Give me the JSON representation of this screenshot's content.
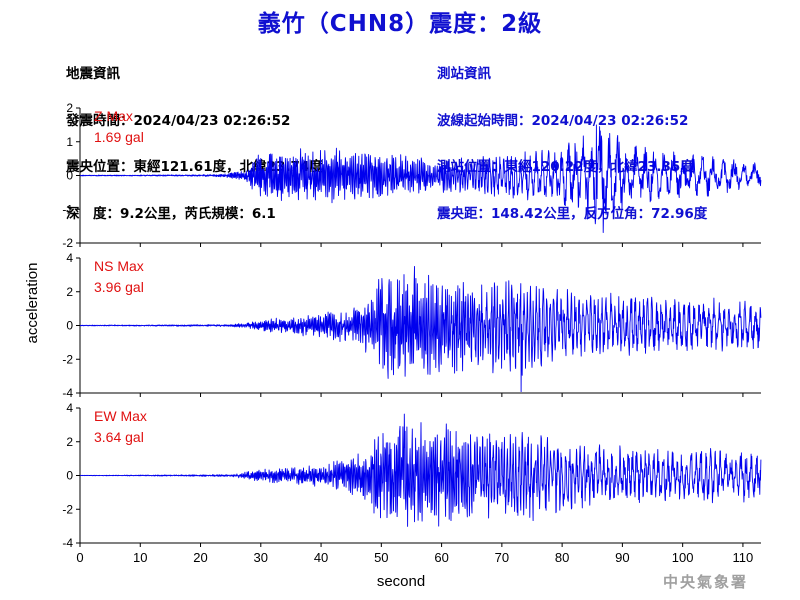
{
  "title": "義竹（CHN8）震度：2級",
  "earthquake_info": {
    "heading": "地震資訊",
    "time": "發震時間：2024/04/23 02:26:52",
    "location": "震央位置：東經121.61度，北緯23.74度",
    "depth_magnitude": "深　度：9.2公里，芮氏規模：6.1"
  },
  "station_info": {
    "heading": "測站資訊",
    "wave_start": "波線起始時間：2024/04/23 02:26:52",
    "location": "測站位置：東經120.22度，北緯23.35度",
    "distance": "震央距：148.42公里，反方位角：72.96度"
  },
  "footer": "中央氣象署",
  "colors": {
    "title": "#1010d0",
    "trace": "#0000ee",
    "max_label": "#e01010",
    "station": "#1010d0"
  },
  "chart_data": {
    "type": "line",
    "xlabel": "second",
    "ylabel": "acceleration",
    "xlim": [
      0,
      113
    ],
    "xticks": [
      0,
      10,
      20,
      30,
      40,
      50,
      60,
      70,
      80,
      90,
      100,
      110
    ],
    "panels": [
      {
        "name": "Z",
        "max_label": "Z Max",
        "max_value": "1.69 gal",
        "ylim": [
          -2,
          2
        ],
        "yticks": [
          -2,
          -1,
          0,
          1,
          2
        ],
        "envelope": [
          [
            0,
            0.01
          ],
          [
            20,
            0.02
          ],
          [
            24,
            0.04
          ],
          [
            27,
            0.12
          ],
          [
            30,
            0.55
          ],
          [
            35,
            0.7
          ],
          [
            40,
            0.7
          ],
          [
            45,
            0.6
          ],
          [
            50,
            0.55
          ],
          [
            55,
            0.5
          ],
          [
            60,
            0.45
          ],
          [
            65,
            0.45
          ],
          [
            70,
            0.55
          ],
          [
            75,
            0.6
          ],
          [
            80,
            0.75
          ],
          [
            84,
            1.0
          ],
          [
            86,
            1.3
          ],
          [
            88,
            1.2
          ],
          [
            90,
            0.9
          ],
          [
            95,
            0.65
          ],
          [
            100,
            0.55
          ],
          [
            105,
            0.5
          ],
          [
            110,
            0.4
          ],
          [
            113,
            0.3
          ]
        ],
        "period": [
          [
            0,
            0.15
          ],
          [
            60,
            0.3
          ],
          [
            70,
            0.6
          ],
          [
            80,
            1.2
          ],
          [
            90,
            1.5
          ],
          [
            113,
            1.8
          ]
        ],
        "peaks": [
          {
            "x": 85.7,
            "y": 1.5
          },
          {
            "x": 86.8,
            "y": -1.69
          }
        ]
      },
      {
        "name": "NS",
        "max_label": "NS Max",
        "max_value": "3.96 gal",
        "ylim": [
          -4,
          4
        ],
        "yticks": [
          -4,
          -2,
          0,
          2,
          4
        ],
        "envelope": [
          [
            0,
            0.02
          ],
          [
            25,
            0.05
          ],
          [
            28,
            0.15
          ],
          [
            32,
            0.35
          ],
          [
            40,
            0.6
          ],
          [
            45,
            0.9
          ],
          [
            48,
            1.6
          ],
          [
            50,
            2.6
          ],
          [
            55,
            2.6
          ],
          [
            60,
            2.3
          ],
          [
            65,
            2.3
          ],
          [
            70,
            2.3
          ],
          [
            73,
            2.5
          ],
          [
            75,
            2.2
          ],
          [
            80,
            1.8
          ],
          [
            90,
            1.5
          ],
          [
            100,
            1.3
          ],
          [
            105,
            1.4
          ],
          [
            110,
            1.2
          ],
          [
            113,
            1.1
          ]
        ],
        "period": [
          [
            0,
            0.15
          ],
          [
            60,
            0.3
          ],
          [
            80,
            0.6
          ],
          [
            113,
            0.9
          ]
        ],
        "peaks": [
          {
            "x": 55.5,
            "y": 3.5
          },
          {
            "x": 73.2,
            "y": -3.96
          }
        ]
      },
      {
        "name": "EW",
        "max_label": "EW Max",
        "max_value": "3.64 gal",
        "ylim": [
          -4,
          4
        ],
        "yticks": [
          -4,
          -2,
          0,
          2,
          4
        ],
        "envelope": [
          [
            0,
            0.01
          ],
          [
            25,
            0.05
          ],
          [
            30,
            0.3
          ],
          [
            40,
            0.55
          ],
          [
            45,
            0.9
          ],
          [
            48,
            1.5
          ],
          [
            50,
            2.4
          ],
          [
            55,
            2.7
          ],
          [
            60,
            2.5
          ],
          [
            65,
            2.3
          ],
          [
            70,
            2.0
          ],
          [
            75,
            2.2
          ],
          [
            80,
            1.8
          ],
          [
            85,
            1.5
          ],
          [
            90,
            1.5
          ],
          [
            95,
            1.3
          ],
          [
            100,
            1.3
          ],
          [
            105,
            1.4
          ],
          [
            110,
            1.3
          ],
          [
            113,
            1.1
          ]
        ],
        "period": [
          [
            0,
            0.15
          ],
          [
            60,
            0.3
          ],
          [
            80,
            0.6
          ],
          [
            113,
            0.9
          ]
        ],
        "peaks": [
          {
            "x": 53.8,
            "y": 3.64
          },
          {
            "x": 59.5,
            "y": -3.0
          }
        ]
      }
    ]
  }
}
